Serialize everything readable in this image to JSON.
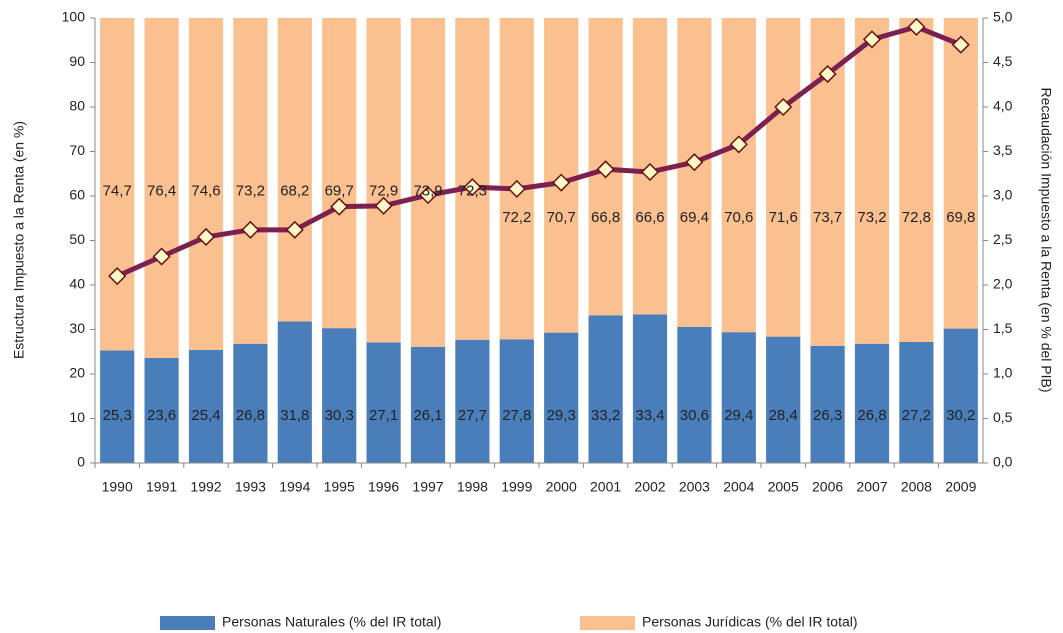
{
  "chart_data": {
    "type": "bar",
    "stacked": true,
    "y_label": "Estructura Impuesto a la Renta (en %)",
    "y2_label": "Recaudación Impuesto a la Renta (en % del PIB)",
    "categories": [
      "1990",
      "1991",
      "1992",
      "1993",
      "1994",
      "1995",
      "1996",
      "1997",
      "1998",
      "1999",
      "2000",
      "2001",
      "2002",
      "2003",
      "2004",
      "2005",
      "2006",
      "2007",
      "2008",
      "2009"
    ],
    "series": [
      {
        "name": "Personas Naturales (% del IR total)",
        "color": "#4a7ebb",
        "values": [
          25.3,
          23.6,
          25.4,
          26.8,
          31.8,
          30.3,
          27.1,
          26.1,
          27.7,
          27.8,
          29.3,
          33.2,
          33.4,
          30.6,
          29.4,
          28.4,
          26.3,
          26.8,
          27.2,
          30.2
        ],
        "value_labels": [
          "25,3",
          "23,6",
          "25,4",
          "26,8",
          "31,8",
          "30,3",
          "27,1",
          "26,1",
          "27,7",
          "27,8",
          "29,3",
          "33,2",
          "33,4",
          "30,6",
          "29,4",
          "28,4",
          "26,3",
          "26,8",
          "27,2",
          "30,2"
        ]
      },
      {
        "name": "Personas Jurídicas (% del IR total)",
        "color": "#fac090",
        "values": [
          74.7,
          76.4,
          74.6,
          73.2,
          68.2,
          69.7,
          72.9,
          73.9,
          72.3,
          72.2,
          70.7,
          66.8,
          66.6,
          69.4,
          70.6,
          71.6,
          73.7,
          73.2,
          72.8,
          69.8
        ],
        "value_labels": [
          "74,7",
          "76,4",
          "74,6",
          "73,2",
          "68,2",
          "69,7",
          "72,9",
          "73,9",
          "72,3",
          "72,2",
          "70,7",
          "66,8",
          "66,6",
          "69,4",
          "70,6",
          "71,6",
          "73,7",
          "73,2",
          "72,8",
          "69,8"
        ]
      },
      {
        "type": "line",
        "axis": "y2",
        "color": "#7b2050",
        "marker_color": "#fff8c8",
        "values": [
          2.1,
          2.32,
          2.54,
          2.62,
          2.62,
          2.88,
          2.89,
          3.01,
          3.1,
          3.08,
          3.15,
          3.3,
          3.27,
          3.38,
          3.58,
          4.0,
          4.37,
          4.76,
          4.9,
          4.7
        ]
      }
    ],
    "ylim": [
      0,
      100
    ],
    "yticks": [
      0,
      10,
      20,
      30,
      40,
      50,
      60,
      70,
      80,
      90,
      100
    ],
    "y2lim": [
      0,
      5
    ],
    "y2ticks": [
      {
        "value": 0,
        "label": "0,0"
      },
      {
        "value": 0.5,
        "label": "0,5"
      },
      {
        "value": 1,
        "label": "1,0"
      },
      {
        "value": 1.5,
        "label": "1,5"
      },
      {
        "value": 2,
        "label": "2,0"
      },
      {
        "value": 2.5,
        "label": "2,5"
      },
      {
        "value": 3,
        "label": "3,0"
      },
      {
        "value": 3.5,
        "label": "3,5"
      },
      {
        "value": 4,
        "label": "4,0"
      },
      {
        "value": 4.5,
        "label": "4,5"
      },
      {
        "value": 5,
        "label": "5,0"
      }
    ],
    "legend": "bottom"
  }
}
